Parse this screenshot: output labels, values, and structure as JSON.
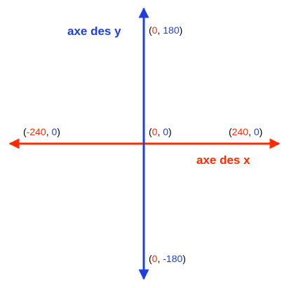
{
  "colors": {
    "x_axis": "#ff2a00",
    "y_axis": "#1f3ee0",
    "paren_text": "#000000"
  },
  "axes": {
    "x_title": "axe des x",
    "y_title": "axe des y"
  },
  "points": {
    "top": {
      "open": "(",
      "x": "0",
      "sep": ", ",
      "y": "180",
      "close": ")"
    },
    "bottom": {
      "open": "(",
      "x": "0",
      "sep": ", ",
      "y": "-180",
      "close": ")"
    },
    "left": {
      "open": "(",
      "x": "-240",
      "sep": ", ",
      "y": "0",
      "close": ")"
    },
    "right": {
      "open": "(",
      "x": "240",
      "sep": ", ",
      "y": "0",
      "close": ")"
    },
    "origin": {
      "open": "(",
      "x": "0",
      "sep": ", ",
      "y": "0",
      "close": ")"
    }
  }
}
